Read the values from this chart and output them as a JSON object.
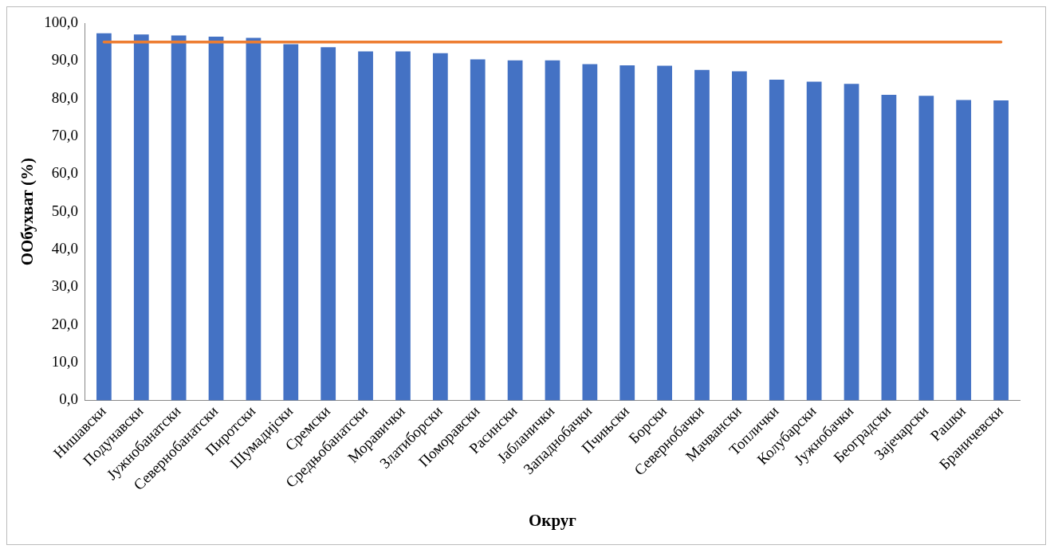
{
  "chart_data": {
    "type": "bar",
    "xlabel": "Округ",
    "ylabel": "ООбухват (%)",
    "categories": [
      "Нишавски",
      "Подунавски",
      "Јужнобанатски",
      "Севернобанатски",
      "Пиротски",
      "Шумадијски",
      "Сремски",
      "Средњобанатски",
      "Моравички",
      "Златиборски",
      "Поморавски",
      "Расински",
      "Јабланички",
      "Западнобачки",
      "Пчињски",
      "Борски",
      "Севернобачки",
      "Мачвански",
      "Топлички",
      "Колубарски",
      "Јужнобачки",
      "Београдски",
      "Зајечарски",
      "Рашки",
      "Браничевски"
    ],
    "series": [
      {
        "color": "#4472c4",
        "values": [
          97.3,
          97.0,
          96.7,
          96.4,
          96.1,
          94.4,
          93.6,
          92.5,
          92.5,
          92.0,
          90.4,
          90.1,
          90.1,
          89.1,
          88.8,
          88.7,
          87.6,
          87.2,
          85.0,
          84.5,
          83.9,
          81.0,
          80.7,
          79.6,
          79.5
        ]
      },
      {
        "type": "line",
        "color": "#ed7d31",
        "values": [
          95,
          95,
          95,
          95,
          95,
          95,
          95,
          95,
          95,
          95,
          95,
          95,
          95,
          95,
          95,
          95,
          95,
          95,
          95,
          95,
          95,
          95,
          95,
          95,
          95
        ]
      }
    ],
    "ylim": [
      0,
      100
    ],
    "yticks": [
      {
        "value": 0,
        "label": "0,0"
      },
      {
        "value": 10,
        "label": "10,0"
      },
      {
        "value": 20,
        "label": "20,0"
      },
      {
        "value": 30,
        "label": "30,0"
      },
      {
        "value": 40,
        "label": "40,0"
      },
      {
        "value": 50,
        "label": "50,0"
      },
      {
        "value": 60,
        "label": "60,0"
      },
      {
        "value": 70,
        "label": "70,0"
      },
      {
        "value": 80,
        "label": "80,0"
      },
      {
        "value": 90,
        "label": "90,0"
      },
      {
        "value": 100,
        "label": "100,0"
      }
    ],
    "grid": false,
    "legend": false,
    "marker": "none"
  }
}
